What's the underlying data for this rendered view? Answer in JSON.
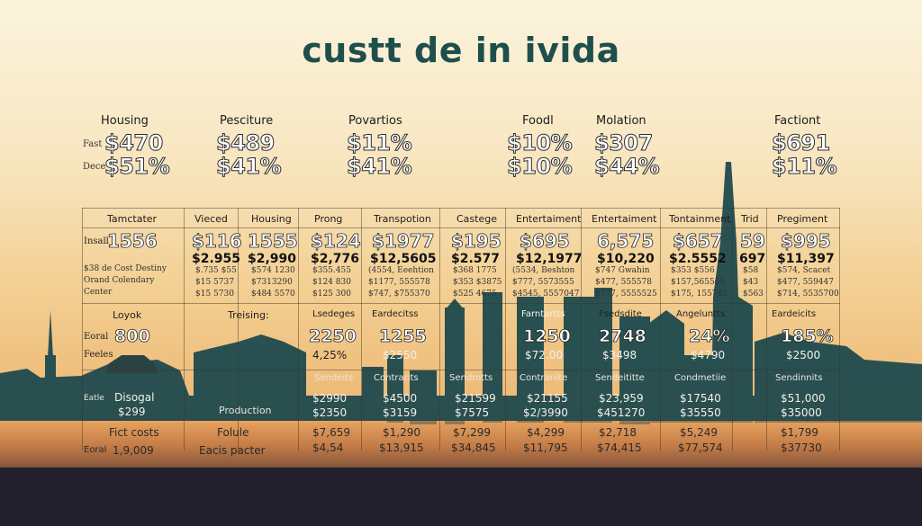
{
  "title": "custt de in ivida",
  "top_categories": [
    {
      "label": "Housing",
      "v1": "$470",
      "v2": "$51%"
    },
    {
      "label": "Pesciture",
      "v1": "$489",
      "v2": "$41%"
    },
    {
      "label": "Povartios",
      "v1": "$11%",
      "v2": "$41%"
    },
    {
      "label": "Foodl",
      "v1": "$10%",
      "v2": "$10%"
    },
    {
      "label": "Molation",
      "v1": "$307",
      "v2": "$44%"
    },
    {
      "label": "Factiont",
      "v1": "$691",
      "v2": "$11%"
    }
  ],
  "top_row_labels": [
    "Fast",
    "Dece"
  ],
  "table": {
    "headers": [
      "Tamctater",
      "Vieced",
      "Housing",
      "Prong",
      "Transpotion",
      "Castege",
      "Entertaiment",
      "Entertaiment",
      "Tontainment",
      "Trid",
      "Pregiment"
    ],
    "row1": {
      "label": "Insall",
      "big": [
        "1556",
        "$116",
        "1555",
        "$124",
        "$1977",
        "$195",
        "$695",
        "6,575",
        "$657",
        "59",
        "$995"
      ],
      "mid": [
        "$2.955",
        "$2,990",
        "$2,776",
        "$12,5605",
        "$2.577",
        "$12,1977",
        "$10,220",
        "$2.5552",
        "697",
        "$11,397"
      ],
      "side_notes": [
        "$38 de Cost Destiny",
        "Orand Colendary",
        "Center"
      ],
      "small_a": [
        "$.735 $55",
        "$574 1230",
        "$355.455",
        "(4554, Eeehtion",
        "$368 1775",
        "(5534, Beshton",
        "$747 Gwahin",
        "$353 $556",
        "$58",
        "$574, Scacet"
      ],
      "small_b": [
        "$15 5737",
        "$7313290",
        "$124 830",
        "$1177, 555578",
        "$353 $3875",
        "$777, 5573555",
        "$477, 555578",
        "$157,565565",
        "$43",
        "$477, 559447"
      ],
      "small_c": [
        "$15 5730",
        "$484 5570",
        "$125 300",
        "$747, $755370",
        "$525 4675",
        "$4545, 5557047",
        "$777, 5555525",
        "$175, 155745",
        "$563",
        "$714, 5535700"
      ]
    },
    "row2": {
      "headers": [
        "Loyok",
        "Treising:",
        "Lsedeges",
        "Eardecitss",
        "Farntartts",
        "Fsedsdite",
        "Angeluntts",
        "Eardeicits"
      ],
      "label1": "Eoral",
      "label2": "Feeles",
      "big": [
        "800",
        "2250",
        "1255",
        "1250",
        "2748",
        "24%",
        "185%"
      ],
      "sub": [
        "4,25%",
        "$2550",
        "$72.00",
        "$3498",
        "$4790",
        "$2500"
      ]
    },
    "row3": {
      "left_label": "Eatle",
      "left_title": "Disogal",
      "left_value": "$299",
      "mid_label": "Production",
      "headers": [
        "Sendeits",
        "Contrarits",
        "Sendrotts",
        "Contrariite",
        "Sendeititte",
        "Condmetiie",
        "Sendinnits"
      ],
      "values": [
        "$2990",
        "$4500",
        "$21599",
        "$21155",
        "$23,959",
        "$17540",
        "$51,000"
      ],
      "values2": [
        "$2350",
        "$3159",
        "$7575",
        "$2/3990",
        "$451270",
        "$35550",
        "$35000"
      ]
    },
    "row4": {
      "label1": "Fict costs",
      "label2": "Eoral",
      "label2_value": "1,9,009",
      "col2_label1": "Folule",
      "col2_label2": "Eacis pacter",
      "values": [
        "$7,659",
        "$1,290",
        "$7,299",
        "$4,299",
        "$2,718",
        "$5,249",
        "$1,799"
      ],
      "values2": [
        "$4,54",
        "$13,915",
        "$34,845",
        "$11,795",
        "$74,415",
        "$77,574",
        "$37730"
      ]
    }
  }
}
